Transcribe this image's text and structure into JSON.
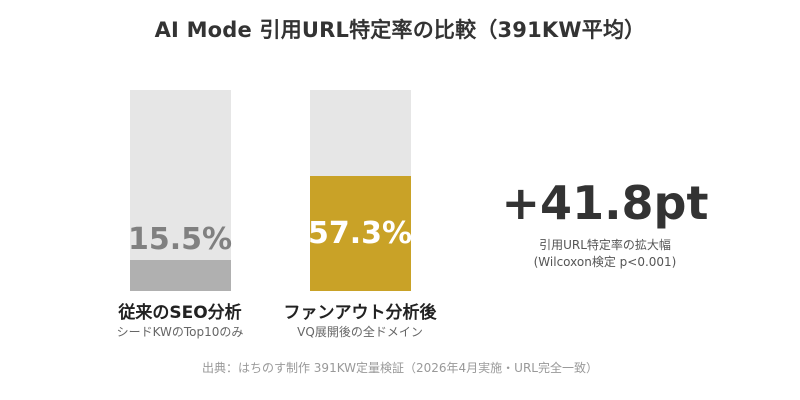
{
  "title": "AI Mode 引用URL特定率の比較（391KW平均）",
  "colors": {
    "track": "#e6e6e6",
    "baseline_fill": "#b0b0b0",
    "baseline_value_text": "#808080",
    "accent_fill": "#c9a227",
    "accent_value_text": "#ffffff"
  },
  "chart_data": {
    "type": "bar",
    "title": "AI Mode 引用URL特定率の比較（391KW平均）",
    "ylim": [
      0,
      100
    ],
    "unit": "%",
    "categories": [
      {
        "label": "従来のSEO分析",
        "sublabel": "シードKWのTop10のみ",
        "value": 15.5,
        "value_label": "15.5%",
        "color": "#b0b0b0"
      },
      {
        "label": "ファンアウト分析後",
        "sublabel": "VQ展開後の全ドメイン",
        "value": 57.3,
        "value_label": "57.3%",
        "color": "#c9a227"
      }
    ],
    "annotation": {
      "value": "+41.8pt",
      "caption_line1": "引用URL特定率の拡大幅",
      "caption_line2": "(Wilcoxon検定 p<0.001)"
    }
  },
  "source": "出典：はちのす制作 391KW定量検証（2026年4月実施・URL完全一致）"
}
